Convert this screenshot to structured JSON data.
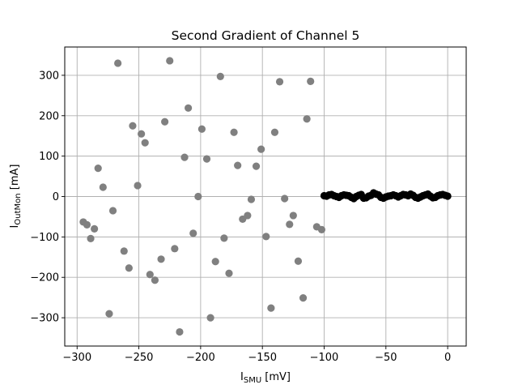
{
  "chart_data": {
    "type": "scatter",
    "title": "Second Gradient of Channel 5",
    "xlabel": {
      "main": "I",
      "sub": "SMU",
      "unit": " [mV]"
    },
    "ylabel": {
      "main": "I",
      "sub": "OutMon",
      "unit": " [mA]"
    },
    "xlim": [
      -310,
      15
    ],
    "ylim": [
      -370,
      370
    ],
    "xticks": [
      -300,
      -250,
      -200,
      -150,
      -100,
      -50,
      0
    ],
    "xtick_labels": [
      "−300",
      "−250",
      "−200",
      "−150",
      "−100",
      "−50",
      "0"
    ],
    "yticks": [
      -300,
      -200,
      -100,
      0,
      100,
      200,
      300
    ],
    "ytick_labels": [
      "−300",
      "−200",
      "−100",
      "0",
      "100",
      "200",
      "300"
    ],
    "grid": true,
    "colors": {
      "gray_series": "#808080",
      "black_series": "#000000"
    },
    "series": [
      {
        "color": "#808080",
        "points": [
          [
            -295,
            -63
          ],
          [
            -292,
            -70
          ],
          [
            -289,
            -104
          ],
          [
            -286,
            -80
          ],
          [
            -283,
            70
          ],
          [
            -279,
            23
          ],
          [
            -274,
            -290
          ],
          [
            -271,
            -35
          ],
          [
            -267,
            330
          ],
          [
            -262,
            -135
          ],
          [
            -258,
            -177
          ],
          [
            -255,
            175
          ],
          [
            -251,
            27
          ],
          [
            -248,
            155
          ],
          [
            -245,
            133
          ],
          [
            -241,
            -193
          ],
          [
            -237,
            -207
          ],
          [
            -232,
            -155
          ],
          [
            -229,
            185
          ],
          [
            -225,
            336
          ],
          [
            -221,
            -129
          ],
          [
            -217,
            -335
          ],
          [
            -213,
            97
          ],
          [
            -210,
            219
          ],
          [
            -206,
            -91
          ],
          [
            -202,
            0
          ],
          [
            -199,
            167
          ],
          [
            -195,
            93
          ],
          [
            -192,
            -300
          ],
          [
            -188,
            -161
          ],
          [
            -184,
            297
          ],
          [
            -181,
            -103
          ],
          [
            -177,
            -190
          ],
          [
            -173,
            159
          ],
          [
            -170,
            77
          ],
          [
            -166,
            -56
          ],
          [
            -162,
            -47
          ],
          [
            -159,
            -7
          ],
          [
            -155,
            75
          ],
          [
            -151,
            117
          ],
          [
            -147,
            -99
          ],
          [
            -143,
            -276
          ],
          [
            -140,
            159
          ],
          [
            -136,
            284
          ],
          [
            -132,
            -5
          ],
          [
            -128,
            -69
          ],
          [
            -125,
            -47
          ],
          [
            -121,
            -160
          ],
          [
            -117,
            -251
          ],
          [
            -114,
            192
          ],
          [
            -111,
            285
          ],
          [
            -106,
            -75
          ],
          [
            -102,
            -82
          ]
        ]
      },
      {
        "color": "#000000",
        "points": [
          [
            -100,
            2
          ],
          [
            -98,
            1
          ],
          [
            -96,
            4
          ],
          [
            -94,
            5
          ],
          [
            -92,
            2
          ],
          [
            -90,
            0
          ],
          [
            -88,
            -2
          ],
          [
            -86,
            2
          ],
          [
            -84,
            4
          ],
          [
            -82,
            3
          ],
          [
            -80,
            2
          ],
          [
            -78,
            -2
          ],
          [
            -76,
            -5
          ],
          [
            -74,
            0
          ],
          [
            -72,
            3
          ],
          [
            -70,
            5
          ],
          [
            -68,
            -4
          ],
          [
            -66,
            -3
          ],
          [
            -64,
            1
          ],
          [
            -62,
            3
          ],
          [
            -60,
            9
          ],
          [
            -58,
            6
          ],
          [
            -56,
            4
          ],
          [
            -54,
            -2
          ],
          [
            -52,
            -4
          ],
          [
            -50,
            -1
          ],
          [
            -48,
            1
          ],
          [
            -46,
            2
          ],
          [
            -44,
            4
          ],
          [
            -42,
            2
          ],
          [
            -40,
            -1
          ],
          [
            -38,
            2
          ],
          [
            -36,
            5
          ],
          [
            -34,
            4
          ],
          [
            -32,
            2
          ],
          [
            -30,
            6
          ],
          [
            -28,
            3
          ],
          [
            -26,
            -2
          ],
          [
            -24,
            -4
          ],
          [
            -22,
            -1
          ],
          [
            -20,
            2
          ],
          [
            -18,
            4
          ],
          [
            -16,
            6
          ],
          [
            -14,
            1
          ],
          [
            -12,
            -3
          ],
          [
            -10,
            -2
          ],
          [
            -8,
            2
          ],
          [
            -6,
            4
          ],
          [
            -4,
            5
          ],
          [
            -2,
            3
          ],
          [
            0,
            1
          ]
        ]
      }
    ]
  }
}
